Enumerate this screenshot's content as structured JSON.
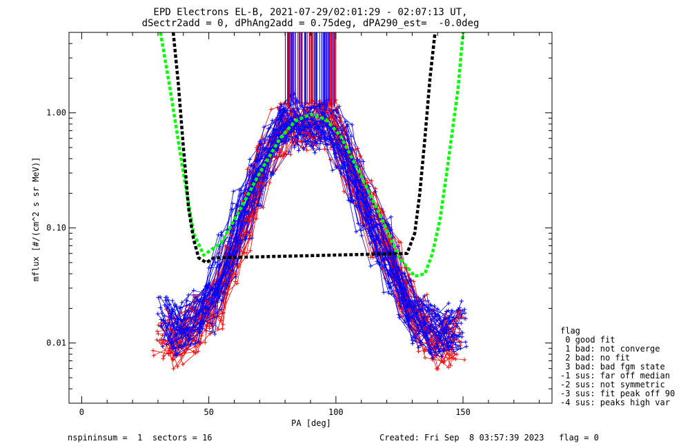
{
  "title": {
    "line1": "EPD Electrons EL-B, 2021-07-29/02:01:29 - 02:07:13 UT,",
    "line2": "dSectr2add = 0, dPhAng2add = 0.75deg, dPA290_est=  -0.0deg"
  },
  "legend": {
    "heading": "flag",
    "items": [
      " 0 good fit",
      " 1 bad: not converge",
      " 2 bad: no fit",
      " 3 bad: bad fgm state",
      "-1 sus: far off median",
      "-2 sus: not symmetric",
      "-3 sus: fit peak off 90",
      "-4 sus: peaks high var"
    ]
  },
  "footer": {
    "left": "nspininsum =  1  sectors = 16",
    "right": "Created: Fri Sep  8 03:57:39 2023   flag = 0"
  },
  "colors": {
    "red_series": "#ff0000",
    "blue_series": "#0000ff",
    "green_fit": "#00ff00",
    "black_fit": "#000000",
    "axes": "#000000"
  },
  "chart_data": {
    "type": "line",
    "xlabel": "PA [deg]",
    "ylabel": "mflux [#/(cm^2 s sr MeV)]",
    "xlim": [
      -5,
      185
    ],
    "ylim": [
      0.003,
      5.0
    ],
    "yscale": "log",
    "grid": false,
    "legend_position": "outside-right",
    "xticks": [
      0,
      50,
      100,
      150
    ],
    "xtick_labels": [
      "0",
      "50",
      "100",
      "150"
    ],
    "yticks": [
      0.01,
      0.1,
      1.0
    ],
    "ytick_labels": [
      "0.01",
      "0.10",
      "1.00"
    ],
    "series": [
      {
        "color": "red",
        "marker": "+",
        "x": [
          33,
          38,
          43,
          48,
          53,
          58,
          63,
          68,
          73,
          78,
          82,
          87,
          92,
          97,
          102,
          107,
          112,
          117,
          122,
          127,
          132,
          137,
          142,
          147
        ],
        "y": [
          0.012,
          0.01,
          0.013,
          0.016,
          0.022,
          0.045,
          0.1,
          0.2,
          0.38,
          0.65,
          0.85,
          0.78,
          0.78,
          0.8,
          0.55,
          0.3,
          0.16,
          0.09,
          0.05,
          0.028,
          0.017,
          0.012,
          0.01,
          0.012
        ]
      },
      {
        "color": "blue",
        "marker": "+",
        "x": [
          33,
          38,
          43,
          48,
          53,
          58,
          63,
          68,
          73,
          78,
          82,
          87,
          92,
          97,
          102,
          107,
          112,
          117,
          122,
          127,
          132,
          137,
          142,
          147
        ],
        "y": [
          0.015,
          0.013,
          0.016,
          0.02,
          0.03,
          0.06,
          0.13,
          0.25,
          0.45,
          0.72,
          0.9,
          0.75,
          0.74,
          0.78,
          0.5,
          0.26,
          0.14,
          0.075,
          0.042,
          0.025,
          0.016,
          0.013,
          0.012,
          0.014
        ]
      },
      {
        "color": "green",
        "style": "dashed",
        "x": [
          31,
          35,
          40,
          44,
          48,
          55,
          62,
          70,
          78,
          84,
          90,
          96,
          102,
          110,
          118,
          125,
          131,
          135,
          138,
          141,
          144,
          148,
          150
        ],
        "y": [
          5.0,
          1.5,
          0.3,
          0.09,
          0.058,
          0.075,
          0.14,
          0.3,
          0.6,
          0.85,
          0.97,
          0.88,
          0.62,
          0.28,
          0.12,
          0.055,
          0.038,
          0.04,
          0.06,
          0.12,
          0.35,
          1.6,
          5.0
        ]
      },
      {
        "color": "black",
        "style": "dashed",
        "x": [
          36,
          38,
          40,
          42,
          44,
          46,
          49,
          52,
          128,
          131,
          133,
          135,
          137,
          139
        ],
        "y": [
          5.0,
          1.8,
          0.5,
          0.15,
          0.08,
          0.055,
          0.05,
          0.055,
          0.06,
          0.09,
          0.2,
          0.6,
          2.0,
          5.0
        ]
      }
    ]
  }
}
